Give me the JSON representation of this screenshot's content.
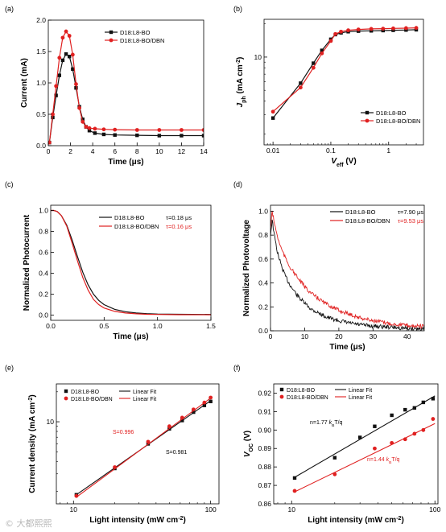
{
  "colors": {
    "black": "#111111",
    "red": "#e02020"
  },
  "watermark": "© 大都熙熙",
  "chart_data": [
    {
      "id": "a",
      "panel_label": "(a)",
      "type": "line",
      "xlabel": "Time (μs)",
      "ylabel": "Current (mA)",
      "xlim": [
        0,
        14
      ],
      "ylim": [
        0,
        2.0
      ],
      "xticks": [
        0,
        2,
        4,
        6,
        8,
        10,
        12,
        14
      ],
      "yticks": [
        0.0,
        0.5,
        1.0,
        1.5,
        2.0
      ],
      "ytick_labels": [
        "0.0",
        "0.5",
        "1.0",
        "1.5",
        "2.0"
      ],
      "legend_position": "top-right",
      "series": [
        {
          "name": "D18:L8-BO",
          "color": "#111111",
          "marker": "square",
          "x": [
            0.1,
            0.4,
            0.7,
            1.0,
            1.3,
            1.6,
            1.9,
            2.2,
            2.5,
            2.8,
            3.1,
            3.4,
            3.7,
            4.2,
            5,
            6,
            8,
            10,
            12,
            14
          ],
          "y": [
            0.05,
            0.45,
            0.8,
            1.12,
            1.36,
            1.46,
            1.42,
            1.22,
            0.92,
            0.62,
            0.42,
            0.3,
            0.24,
            0.2,
            0.18,
            0.17,
            0.165,
            0.16,
            0.16,
            0.16
          ]
        },
        {
          "name": "D18:L8-BO/DBN",
          "color": "#e02020",
          "marker": "circle",
          "x": [
            0.1,
            0.4,
            0.7,
            1.0,
            1.3,
            1.6,
            1.9,
            2.2,
            2.5,
            2.8,
            3.1,
            3.4,
            3.7,
            4.2,
            5,
            6,
            8,
            10,
            12,
            14
          ],
          "y": [
            0.05,
            0.5,
            0.95,
            1.4,
            1.72,
            1.82,
            1.75,
            1.45,
            0.98,
            0.6,
            0.38,
            0.3,
            0.28,
            0.27,
            0.26,
            0.255,
            0.25,
            0.25,
            0.25,
            0.25
          ]
        }
      ]
    },
    {
      "id": "b",
      "panel_label": "(b)",
      "type": "line",
      "xscale": "log",
      "yscale": "log",
      "xlabel_main": "V",
      "xlabel_sub": "eff",
      "xlabel_unit": " (V)",
      "ylabel_main": "J",
      "ylabel_sub": "ph",
      "ylabel_unit": " (mA cm",
      "ylabel_sup": "-2",
      "ylabel_close": ")",
      "xlim": [
        0.007,
        4
      ],
      "ylim": [
        1.6,
        22
      ],
      "xticks": [
        0.01,
        0.1,
        1
      ],
      "xtick_labels": [
        "0.01",
        "0.1",
        "1"
      ],
      "yticks": [
        10
      ],
      "ytick_labels": [
        "10"
      ],
      "legend_position": "bottom-right",
      "series": [
        {
          "name": "D18:L8-BO",
          "color": "#111111",
          "marker": "square",
          "x": [
            0.01,
            0.03,
            0.05,
            0.07,
            0.1,
            0.12,
            0.15,
            0.2,
            0.3,
            0.5,
            0.8,
            1.2,
            2,
            3
          ],
          "y": [
            2.8,
            5.8,
            8.8,
            11.5,
            14.5,
            16.0,
            16.6,
            17.0,
            17.2,
            17.3,
            17.4,
            17.5,
            17.6,
            17.7
          ]
        },
        {
          "name": "D18:L8-BO/DBN",
          "color": "#e02020",
          "marker": "circle",
          "x": [
            0.01,
            0.03,
            0.05,
            0.07,
            0.1,
            0.12,
            0.15,
            0.2,
            0.3,
            0.5,
            0.8,
            1.2,
            2,
            3
          ],
          "y": [
            3.2,
            5.3,
            8.0,
            10.8,
            14.0,
            16.2,
            17.0,
            17.5,
            17.8,
            18.0,
            18.1,
            18.2,
            18.3,
            18.4
          ]
        }
      ]
    },
    {
      "id": "c",
      "panel_label": "(c)",
      "type": "line",
      "xlabel": "Time (μs)",
      "ylabel": "Normalized Photocurrent",
      "xlim": [
        0,
        1.5
      ],
      "ylim": [
        -0.05,
        1.05
      ],
      "xticks": [
        0.0,
        0.5,
        1.0,
        1.5
      ],
      "xtick_labels": [
        "0.0",
        "0.5",
        "1.0",
        "1.5"
      ],
      "yticks": [
        0.0,
        0.2,
        0.4,
        0.6,
        0.8,
        1.0
      ],
      "ytick_labels": [
        "0.0",
        "0.2",
        "0.4",
        "0.6",
        "0.8",
        "1.0"
      ],
      "legend_position": "top-right",
      "series": [
        {
          "name": "D18:L8-BO",
          "color": "#111111",
          "tau": "τ=0.18 μs",
          "x": [
            0,
            0.03,
            0.06,
            0.1,
            0.15,
            0.2,
            0.25,
            0.3,
            0.35,
            0.4,
            0.45,
            0.5,
            0.6,
            0.7,
            0.8,
            0.9,
            1.0,
            1.2,
            1.5
          ],
          "y": [
            1.0,
            1.0,
            0.99,
            0.95,
            0.86,
            0.72,
            0.56,
            0.41,
            0.29,
            0.2,
            0.14,
            0.1,
            0.055,
            0.032,
            0.02,
            0.014,
            0.01,
            0.008,
            0.006
          ]
        },
        {
          "name": "D18:L8-BO/DBN",
          "color": "#e02020",
          "tau": "τ=0.16 μs",
          "x": [
            0,
            0.03,
            0.06,
            0.1,
            0.15,
            0.2,
            0.25,
            0.3,
            0.35,
            0.4,
            0.45,
            0.5,
            0.6,
            0.7,
            0.8,
            0.9,
            1.0,
            1.2,
            1.5
          ],
          "y": [
            1.0,
            1.0,
            0.99,
            0.95,
            0.85,
            0.69,
            0.52,
            0.36,
            0.24,
            0.15,
            0.1,
            0.068,
            0.035,
            0.02,
            0.012,
            0.008,
            0.006,
            0.004,
            0.003
          ]
        }
      ]
    },
    {
      "id": "d",
      "panel_label": "(d)",
      "type": "line",
      "xlabel": "Time (μs)",
      "ylabel": "Normalized Photovoltage",
      "xlim": [
        0,
        45
      ],
      "ylim": [
        0,
        1.05
      ],
      "xticks": [
        0,
        10,
        20,
        30,
        40
      ],
      "yticks": [
        0.0,
        0.2,
        0.4,
        0.6,
        0.8,
        1.0
      ],
      "ytick_labels": [
        "0.0",
        "0.2",
        "0.4",
        "0.6",
        "0.8",
        "1.0"
      ],
      "legend_position": "top-right",
      "series": [
        {
          "name": "D18:L8-BO",
          "color": "#111111",
          "tau": "τ=7.90 μs",
          "x": [
            0,
            0.5,
            1,
            2,
            3,
            4,
            5,
            6,
            8,
            10,
            12,
            14,
            16,
            18,
            20,
            23,
            26,
            30,
            35,
            40,
            45
          ],
          "y": [
            0.8,
            0.93,
            0.82,
            0.66,
            0.56,
            0.48,
            0.42,
            0.37,
            0.29,
            0.23,
            0.18,
            0.15,
            0.12,
            0.1,
            0.085,
            0.065,
            0.05,
            0.04,
            0.03,
            0.02,
            0.015
          ]
        },
        {
          "name": "D18:L8-BO/DBN",
          "color": "#e02020",
          "tau": "τ=9.53 μs",
          "x": [
            0,
            0.5,
            1,
            2,
            3,
            4,
            5,
            6,
            8,
            10,
            12,
            14,
            16,
            18,
            20,
            23,
            26,
            30,
            35,
            40,
            45
          ],
          "y": [
            0.85,
            1.0,
            0.92,
            0.79,
            0.7,
            0.63,
            0.57,
            0.52,
            0.44,
            0.37,
            0.31,
            0.27,
            0.23,
            0.2,
            0.17,
            0.14,
            0.11,
            0.085,
            0.06,
            0.045,
            0.035
          ]
        }
      ]
    },
    {
      "id": "e",
      "panel_label": "(e)",
      "type": "scatter",
      "xscale": "log",
      "yscale": "log",
      "xlabel_main": "Light intensity (mW cm",
      "xlabel_sup": "-2",
      "xlabel_close": ")",
      "ylabel_main": "Current density (mA cm",
      "ylabel_sup": "-2",
      "ylabel_close": ")",
      "xlim": [
        7.5,
        115
      ],
      "ylim": [
        1.5,
        24
      ],
      "xticks": [
        10,
        100
      ],
      "xtick_labels": [
        "10",
        "100"
      ],
      "yticks": [
        10
      ],
      "ytick_labels": [
        "10"
      ],
      "legend_position": "top-left",
      "fit_label": "Linear Fit",
      "series": [
        {
          "name": "D18:L8-BO",
          "color": "#111111",
          "marker": "square",
          "slope_label": "S=0.981",
          "x": [
            10.5,
            20,
            35,
            50,
            62,
            75,
            90,
            100
          ],
          "y": [
            1.85,
            3.4,
            6.0,
            8.5,
            10.3,
            12.5,
            14.6,
            16.0
          ],
          "fit": {
            "x": [
              10.5,
              100
            ],
            "y": [
              1.85,
              16.3
            ]
          }
        },
        {
          "name": "D18:L8-BO/DBN",
          "color": "#e02020",
          "marker": "circle",
          "slope_label": "S=0.996",
          "x": [
            10.5,
            20,
            35,
            50,
            62,
            75,
            90,
            100
          ],
          "y": [
            1.8,
            3.5,
            6.3,
            9.0,
            11.0,
            13.3,
            15.6,
            17.5
          ],
          "fit": {
            "x": [
              10.5,
              100
            ],
            "y": [
              1.75,
              17.3
            ]
          }
        }
      ]
    },
    {
      "id": "f",
      "panel_label": "(f)",
      "type": "scatter",
      "xscale": "log",
      "xlabel_main": "Light intensity (mW cm",
      "xlabel_sup": "-2",
      "xlabel_close": ")",
      "ylabel_main": "V",
      "ylabel_sub": "OC",
      "ylabel_unit": " (V)",
      "xlim": [
        7.5,
        105
      ],
      "ylim": [
        0.86,
        0.925
      ],
      "xticks": [
        10,
        100
      ],
      "xtick_labels": [
        "10",
        "100"
      ],
      "yticks": [
        0.86,
        0.87,
        0.88,
        0.89,
        0.9,
        0.91,
        0.92
      ],
      "ytick_labels": [
        "0.86",
        "0.87",
        "0.88",
        "0.89",
        "0.90",
        "0.91",
        "0.92"
      ],
      "legend_position": "top",
      "fit_label": "Linear Fit",
      "series": [
        {
          "name": "D18:L8-BO",
          "color": "#111111",
          "marker": "square",
          "slope_pre": "n=1.77 ",
          "slope_k": "k",
          "slope_sub": "B",
          "slope_post": "T/q",
          "x": [
            10.5,
            20,
            30,
            38,
            50,
            62,
            72,
            83,
            97
          ],
          "y": [
            0.874,
            0.885,
            0.896,
            0.902,
            0.908,
            0.911,
            0.912,
            0.915,
            0.917
          ],
          "fit": {
            "x": [
              10.5,
              100
            ],
            "y": [
              0.8744,
              0.9185
            ]
          }
        },
        {
          "name": "D18:L8-BO/DBN",
          "color": "#e02020",
          "marker": "circle",
          "slope_pre": "n=1.44 ",
          "slope_k": "k",
          "slope_sub": "B",
          "slope_post": "T/q",
          "x": [
            10.5,
            20,
            38,
            50,
            62,
            72,
            83,
            97
          ],
          "y": [
            0.867,
            0.876,
            0.89,
            0.893,
            0.895,
            0.898,
            0.9,
            0.906
          ],
          "fit": {
            "x": [
              10.5,
              100
            ],
            "y": [
              0.8665,
              0.9035
            ]
          }
        }
      ]
    }
  ]
}
